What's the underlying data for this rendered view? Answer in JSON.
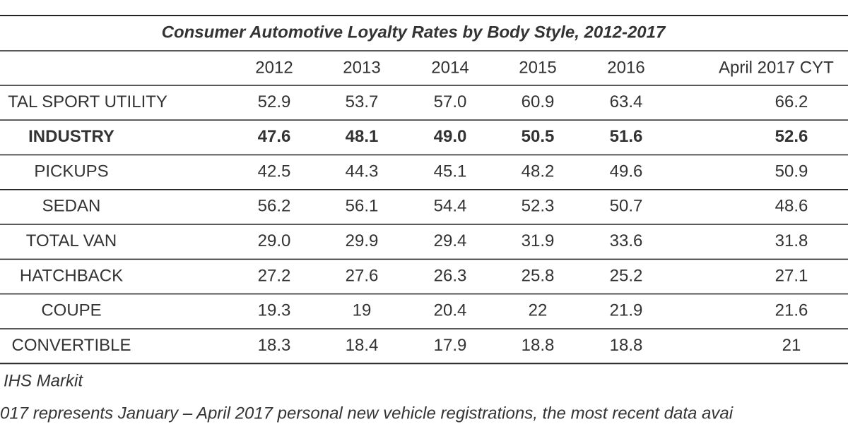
{
  "table": {
    "title": "Consumer Automotive Loyalty Rates by Body Style, 2012-2017",
    "header": [
      "2012",
      "2013",
      "2014",
      "2015",
      "2016",
      "April 2017 CYT"
    ],
    "rows": [
      [
        "TAL SPORT UTILITY",
        "52.9",
        "53.7",
        "57.0",
        "60.9",
        "63.4",
        "66.2"
      ],
      [
        "INDUSTRY",
        "47.6",
        "48.1",
        "49.0",
        "50.5",
        "51.6",
        "52.6"
      ],
      [
        "PICKUPS",
        "42.5",
        "44.3",
        "45.1",
        "48.2",
        "49.6",
        "50.9"
      ],
      [
        "SEDAN",
        "56.2",
        "56.1",
        "54.4",
        "52.3",
        "50.7",
        "48.6"
      ],
      [
        "TOTAL VAN",
        "29.0",
        "29.9",
        "29.4",
        "31.9",
        "33.6",
        "31.8"
      ],
      [
        "HATCHBACK",
        "27.2",
        "27.6",
        "26.3",
        "25.8",
        "25.2",
        "27.1"
      ],
      [
        "COUPE",
        "19.3",
        "19",
        "20.4",
        "22",
        "21.9",
        "21.6"
      ],
      [
        "CONVERTIBLE",
        "18.3",
        "18.4",
        "17.9",
        "18.8",
        "18.8",
        "21"
      ]
    ]
  },
  "footnotes": [
    "IHS Markit",
    "017 represents January – April 2017 personal new vehicle registrations, the most recent data avai"
  ]
}
